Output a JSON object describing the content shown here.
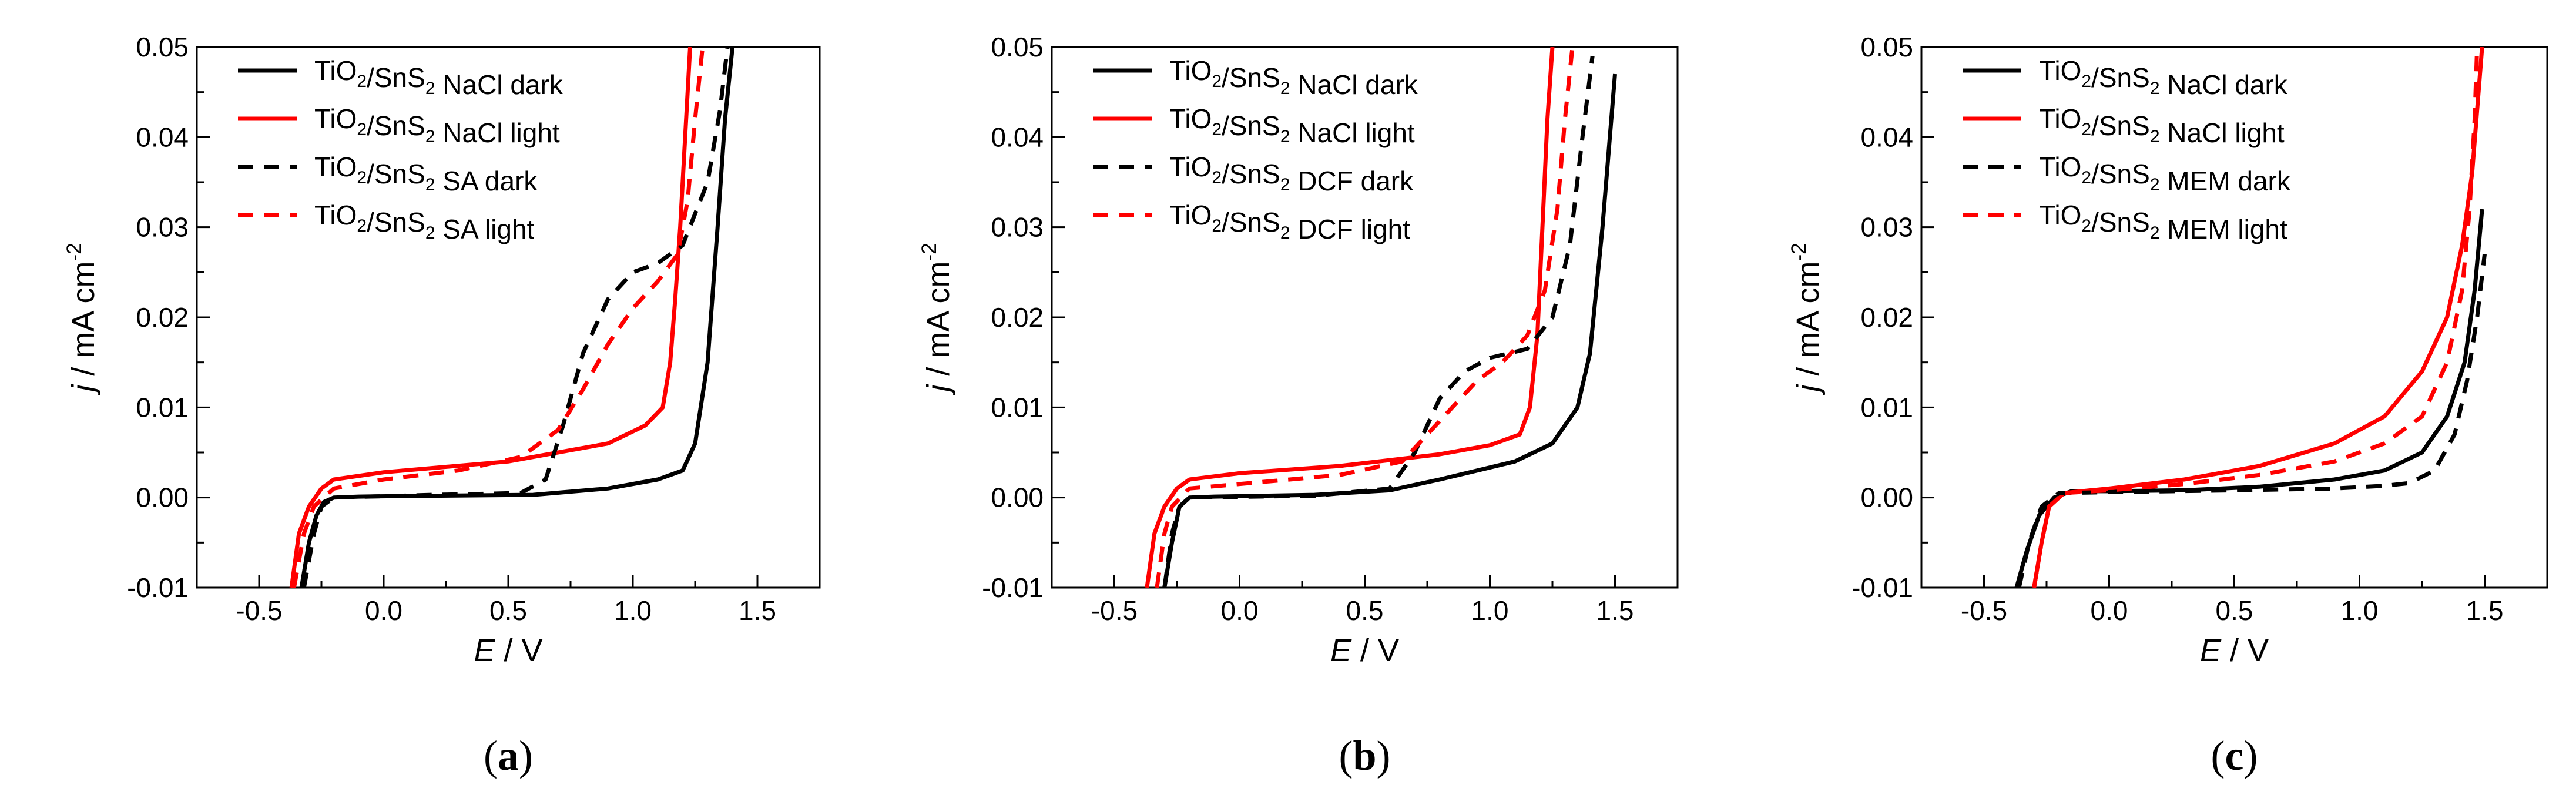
{
  "chart_data": [
    {
      "type": "line",
      "panel_label": "(a)",
      "xlabel": "E / V",
      "ylabel": "j / mA cm-2",
      "xlim": [
        -0.75,
        1.75
      ],
      "ylim": [
        -0.01,
        0.05
      ],
      "xticks": [
        "-0.5",
        "0.0",
        "0.5",
        "1.0",
        "1.5"
      ],
      "yticks": [
        "-0.01",
        "0.00",
        "0.01",
        "0.02",
        "0.03",
        "0.04",
        "0.05"
      ],
      "legend_position": "top-left",
      "series": [
        {
          "name": "TiO2/SnS2 NaCl dark",
          "color": "#000000",
          "dash": "solid",
          "x": [
            -0.33,
            -0.3,
            -0.27,
            -0.24,
            -0.2,
            -0.1,
            0.2,
            0.6,
            0.9,
            1.1,
            1.2,
            1.25,
            1.3,
            1.34,
            1.37,
            1.4
          ],
          "y": [
            -0.01,
            -0.005,
            -0.002,
            -0.0005,
            0.0,
            0.0001,
            0.0002,
            0.0003,
            0.001,
            0.002,
            0.003,
            0.006,
            0.015,
            0.03,
            0.042,
            0.05
          ]
        },
        {
          "name": "TiO2/SnS2 NaCl light",
          "color": "#ff0000",
          "dash": "solid",
          "x": [
            -0.37,
            -0.34,
            -0.3,
            -0.25,
            -0.2,
            0.0,
            0.5,
            0.9,
            1.05,
            1.12,
            1.15,
            1.17,
            1.19,
            1.21,
            1.23
          ],
          "y": [
            -0.01,
            -0.004,
            -0.001,
            0.001,
            0.002,
            0.0028,
            0.004,
            0.006,
            0.008,
            0.01,
            0.015,
            0.022,
            0.03,
            0.04,
            0.05
          ]
        },
        {
          "name": "TiO2/SnS2 SA dark",
          "color": "#000000",
          "dash": "dashed",
          "x": [
            -0.32,
            -0.28,
            -0.25,
            -0.2,
            0.2,
            0.55,
            0.65,
            0.72,
            0.8,
            0.9,
            1.0,
            1.1,
            1.2,
            1.3,
            1.35,
            1.38
          ],
          "y": [
            -0.01,
            -0.004,
            -0.001,
            0.0,
            0.0003,
            0.0005,
            0.002,
            0.008,
            0.016,
            0.022,
            0.025,
            0.026,
            0.028,
            0.035,
            0.043,
            0.05
          ]
        },
        {
          "name": "TiO2/SnS2 SA light",
          "color": "#ff0000",
          "dash": "dashed",
          "x": [
            -0.36,
            -0.32,
            -0.28,
            -0.2,
            0.0,
            0.3,
            0.55,
            0.7,
            0.8,
            0.9,
            1.0,
            1.1,
            1.18,
            1.22,
            1.25,
            1.28
          ],
          "y": [
            -0.01,
            -0.004,
            -0.001,
            0.001,
            0.002,
            0.003,
            0.0045,
            0.0075,
            0.012,
            0.017,
            0.021,
            0.024,
            0.027,
            0.033,
            0.042,
            0.05
          ]
        }
      ]
    },
    {
      "type": "line",
      "panel_label": "(b)",
      "xlabel": "E / V",
      "ylabel": "j / mA cm-2",
      "xlim": [
        -0.75,
        1.75
      ],
      "ylim": [
        -0.01,
        0.05
      ],
      "xticks": [
        "-0.5",
        "0.0",
        "0.5",
        "1.0",
        "1.5"
      ],
      "yticks": [
        "-0.01",
        "0.00",
        "0.01",
        "0.02",
        "0.03",
        "0.04",
        "0.05"
      ],
      "legend_position": "top-left",
      "series": [
        {
          "name": "TiO2/SnS2 NaCl dark",
          "color": "#000000",
          "dash": "solid",
          "x": [
            -0.3,
            -0.27,
            -0.24,
            -0.2,
            -0.1,
            0.3,
            0.6,
            0.8,
            0.95,
            1.1,
            1.25,
            1.35,
            1.4,
            1.45,
            1.5
          ],
          "y": [
            -0.01,
            -0.005,
            -0.001,
            0.0,
            0.0001,
            0.0003,
            0.0008,
            0.002,
            0.003,
            0.004,
            0.006,
            0.01,
            0.016,
            0.03,
            0.047
          ]
        },
        {
          "name": "TiO2/SnS2 NaCl light",
          "color": "#ff0000",
          "dash": "solid",
          "x": [
            -0.37,
            -0.34,
            -0.3,
            -0.25,
            -0.2,
            0.0,
            0.4,
            0.8,
            1.0,
            1.12,
            1.16,
            1.19,
            1.21,
            1.23,
            1.25
          ],
          "y": [
            -0.01,
            -0.004,
            -0.001,
            0.001,
            0.002,
            0.0027,
            0.0035,
            0.0048,
            0.0058,
            0.007,
            0.01,
            0.018,
            0.03,
            0.042,
            0.05
          ]
        },
        {
          "name": "TiO2/SnS2 DCF dark",
          "color": "#000000",
          "dash": "dashed",
          "x": [
            -0.3,
            -0.27,
            -0.24,
            -0.2,
            0.3,
            0.6,
            0.7,
            0.8,
            0.9,
            1.0,
            1.15,
            1.25,
            1.32,
            1.37,
            1.41
          ],
          "y": [
            -0.01,
            -0.004,
            -0.001,
            0.0,
            0.0002,
            0.001,
            0.005,
            0.011,
            0.014,
            0.0155,
            0.0165,
            0.02,
            0.028,
            0.04,
            0.049
          ]
        },
        {
          "name": "TiO2/SnS2 DCF light",
          "color": "#ff0000",
          "dash": "dashed",
          "x": [
            -0.33,
            -0.3,
            -0.27,
            -0.2,
            0.0,
            0.4,
            0.65,
            0.75,
            0.85,
            0.95,
            1.05,
            1.15,
            1.22,
            1.27,
            1.3,
            1.33
          ],
          "y": [
            -0.01,
            -0.004,
            -0.001,
            0.001,
            0.0015,
            0.0025,
            0.004,
            0.007,
            0.01,
            0.013,
            0.015,
            0.018,
            0.023,
            0.032,
            0.042,
            0.05
          ]
        }
      ]
    },
    {
      "type": "line",
      "panel_label": "(c)",
      "xlabel": "E / V",
      "ylabel": "j / mA cm-2",
      "xlim": [
        -0.75,
        1.75
      ],
      "ylim": [
        -0.01,
        0.05
      ],
      "xticks": [
        "-0.5",
        "0.0",
        "0.5",
        "1.0",
        "1.5"
      ],
      "yticks": [
        "-0.01",
        "0.00",
        "0.01",
        "0.02",
        "0.03",
        "0.04",
        "0.05"
      ],
      "legend_position": "top-left",
      "series": [
        {
          "name": "TiO2/SnS2  NaCl dark",
          "color": "#000000",
          "dash": "solid",
          "x": [
            -0.37,
            -0.33,
            -0.28,
            -0.22,
            -0.15,
            0.0,
            0.3,
            0.6,
            0.9,
            1.1,
            1.25,
            1.35,
            1.42,
            1.46,
            1.49
          ],
          "y": [
            -0.01,
            -0.006,
            -0.002,
            0.0,
            0.0007,
            0.0007,
            0.0008,
            0.0012,
            0.002,
            0.003,
            0.005,
            0.009,
            0.015,
            0.023,
            0.032
          ]
        },
        {
          "name": "TiO2/SnS2  NaCl light",
          "color": "#ff0000",
          "dash": "solid",
          "x": [
            -0.3,
            -0.27,
            -0.24,
            -0.18,
            0.0,
            0.3,
            0.6,
            0.9,
            1.1,
            1.25,
            1.35,
            1.41,
            1.45,
            1.47,
            1.49
          ],
          "y": [
            -0.01,
            -0.005,
            -0.001,
            0.0005,
            0.001,
            0.002,
            0.0035,
            0.006,
            0.009,
            0.014,
            0.02,
            0.028,
            0.036,
            0.043,
            0.05
          ]
        },
        {
          "name": "TiO2/SnS2  MEM dark",
          "color": "#000000",
          "dash": "dashed",
          "x": [
            -0.36,
            -0.32,
            -0.27,
            -0.2,
            0.0,
            0.5,
            0.9,
            1.1,
            1.2,
            1.3,
            1.38,
            1.43,
            1.47,
            1.5
          ],
          "y": [
            -0.01,
            -0.005,
            -0.001,
            0.0005,
            0.0006,
            0.0008,
            0.001,
            0.0013,
            0.0016,
            0.003,
            0.007,
            0.013,
            0.02,
            0.027
          ]
        },
        {
          "name": "TiO2/SnS2  MEM light",
          "color": "#ff0000",
          "dash": "dashed",
          "x": [
            -0.3,
            -0.27,
            -0.24,
            -0.18,
            0.0,
            0.3,
            0.6,
            0.9,
            1.1,
            1.25,
            1.35,
            1.41,
            1.44,
            1.46,
            1.47
          ],
          "y": [
            -0.01,
            -0.005,
            -0.001,
            0.0005,
            0.0008,
            0.0015,
            0.0025,
            0.004,
            0.006,
            0.009,
            0.015,
            0.023,
            0.032,
            0.042,
            0.05
          ]
        }
      ]
    }
  ]
}
